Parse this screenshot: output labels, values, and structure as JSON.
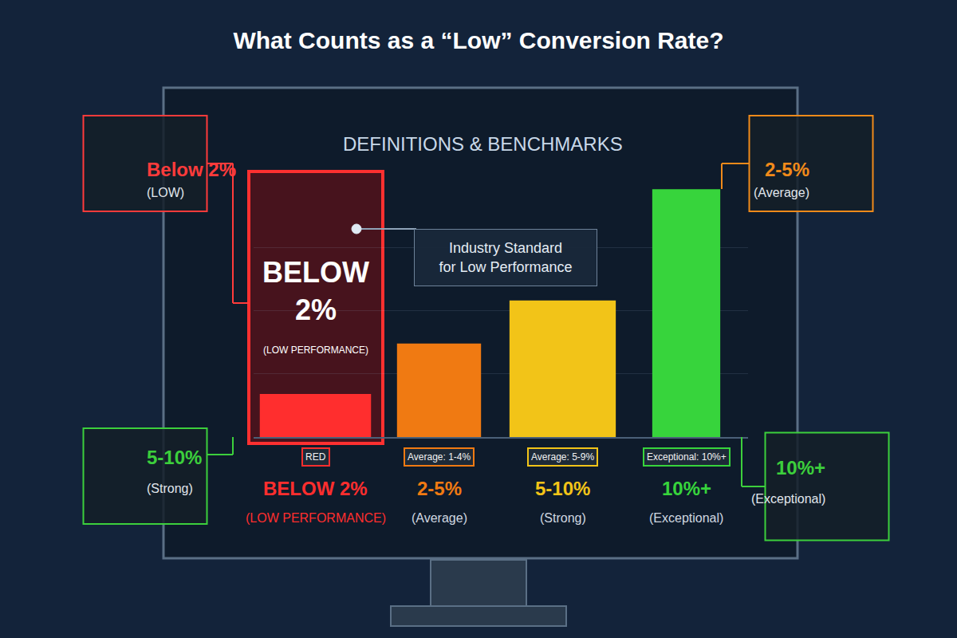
{
  "chart_data": {
    "type": "bar",
    "title": "What Counts as a “Low” Conversion Rate?",
    "subtitle": "DEFINITIONS & BENCHMARKS",
    "categories": [
      "BELOW 2%",
      "2-5%",
      "5-10%",
      "10%+"
    ],
    "category_notes": [
      "(LOW PERFORMANCE)",
      "(Average)",
      "(Strong)",
      "(Exceptional)"
    ],
    "values": [
      17,
      37,
      54,
      98
    ],
    "colors": [
      "#ff2e2e",
      "#f07a12",
      "#f2c418",
      "#37d43c"
    ],
    "badges": [
      "RED",
      "Average: 1-4%",
      "Average: 5-9%",
      "Exceptional: 10%+"
    ],
    "ylim": [
      0,
      100
    ],
    "yticks": [
      0,
      25,
      50,
      75,
      100
    ],
    "grid": true,
    "tick_labels": false,
    "callout": "Industry Standard for Low Performance",
    "highlight": {
      "label": "BELOW 2%",
      "note": "(LOW PERFORMANCE)"
    },
    "side_boxes": [
      {
        "label": "Below 2%",
        "note": "(LOW)",
        "color": "#ff3b3b"
      },
      {
        "label": "2-5%",
        "note": "(Average)",
        "color": "#f08a1a"
      },
      {
        "label": "5-10%",
        "note": "(Strong)",
        "color": "#3ccf3c"
      },
      {
        "label": "10%+",
        "note": "(Exceptional)",
        "color": "#3ccf3c"
      }
    ]
  }
}
